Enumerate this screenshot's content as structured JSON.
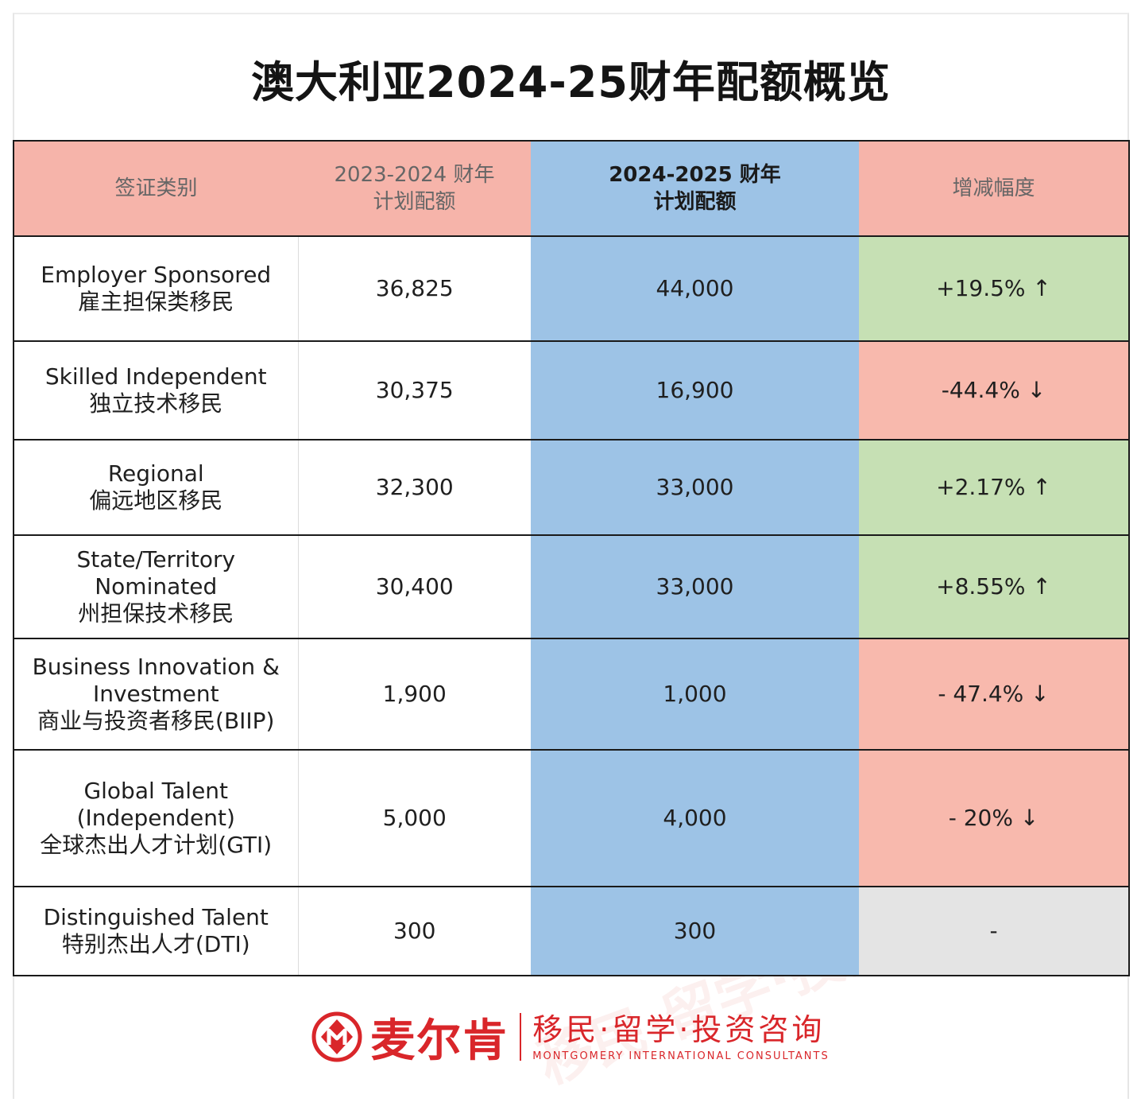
{
  "title": "澳大利亚2024-25财年配额概览",
  "colors": {
    "header": "#f6b4aa",
    "highlight_column": "#9dc3e6",
    "increase": "#c6e0b4",
    "decrease": "#f8b9ad",
    "no_change": "#e4e4e4",
    "brand": "#d9262a"
  },
  "table": {
    "headers": {
      "category": "签证类别",
      "fy2023_line1": "2023-2024 财年",
      "fy2023_line2": "计划配额",
      "fy2024_line1": "2024-2025 财年",
      "fy2024_line2": "计划配额",
      "change": "增减幅度"
    },
    "rows": [
      {
        "en": "Employer Sponsored",
        "zh": "雇主担保类移民",
        "fy2023": "36,825",
        "fy2024": "44,000",
        "change": "+19.5% ↑",
        "trend": "up"
      },
      {
        "en": "Skilled Independent",
        "zh": "独立技术移民",
        "fy2023": "30,375",
        "fy2024": "16,900",
        "change": "-44.4% ↓",
        "trend": "down"
      },
      {
        "en": "Regional",
        "zh": "偏远地区移民",
        "fy2023": "32,300",
        "fy2024": "33,000",
        "change": "+2.17% ↑",
        "trend": "up"
      },
      {
        "en": "State/Territory Nominated",
        "zh": "州担保技术移民",
        "fy2023": "30,400",
        "fy2024": "33,000",
        "change": "+8.55% ↑",
        "trend": "up"
      },
      {
        "en": "Business Innovation & Investment",
        "zh": "商业与投资者移民(BIIP)",
        "fy2023": "1,900",
        "fy2024": "1,000",
        "change": "- 47.4% ↓",
        "trend": "down"
      },
      {
        "en": "Global Talent (Independent)",
        "zh": "全球杰出人才计划(GTI)",
        "fy2023": "5,000",
        "fy2024": "4,000",
        "change": "- 20% ↓",
        "trend": "down"
      },
      {
        "en": "Distinguished Talent",
        "zh": "特别杰出人才(DTI)",
        "fy2023": "300",
        "fy2024": "300",
        "change": "-",
        "trend": "flat"
      }
    ]
  },
  "footer": {
    "brand": "麦尔肯",
    "slogan": "移民·留学·投资咨询",
    "slogan_en": "MONTGOMERY INTERNATIONAL CONSULTANTS",
    "logo_icon": "m-logo-icon"
  }
}
